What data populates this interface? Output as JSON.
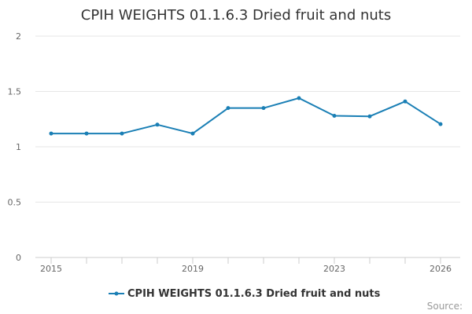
{
  "chart_data": {
    "type": "line",
    "title": "CPIH WEIGHTS 01.1.6.3 Dried fruit and nuts",
    "x": [
      2015,
      2016,
      2017,
      2018,
      2019,
      2020,
      2021,
      2022,
      2023,
      2024,
      2025,
      2026
    ],
    "series": [
      {
        "name": "CPIH WEIGHTS 01.1.6.3 Dried fruit and nuts",
        "values": [
          1.12,
          1.12,
          1.12,
          1.2,
          1.12,
          1.35,
          1.35,
          1.44,
          1.28,
          1.275,
          1.41,
          1.205
        ]
      }
    ],
    "x_tick_labels": [
      "2015",
      "2019",
      "2023",
      "2026"
    ],
    "y_ticks": [
      0,
      0.5,
      1,
      1.5,
      2
    ],
    "y_tick_labels": [
      "0",
      "0.5",
      "1",
      "1.5",
      "2"
    ],
    "ylim": [
      0,
      2
    ],
    "xlim": [
      2015,
      2026
    ],
    "grid": "horizontal",
    "legend_position": "bottom-center",
    "line_color": "#1a7fb5",
    "gridline_color": "#e6e6e6",
    "credit": "Source:"
  }
}
